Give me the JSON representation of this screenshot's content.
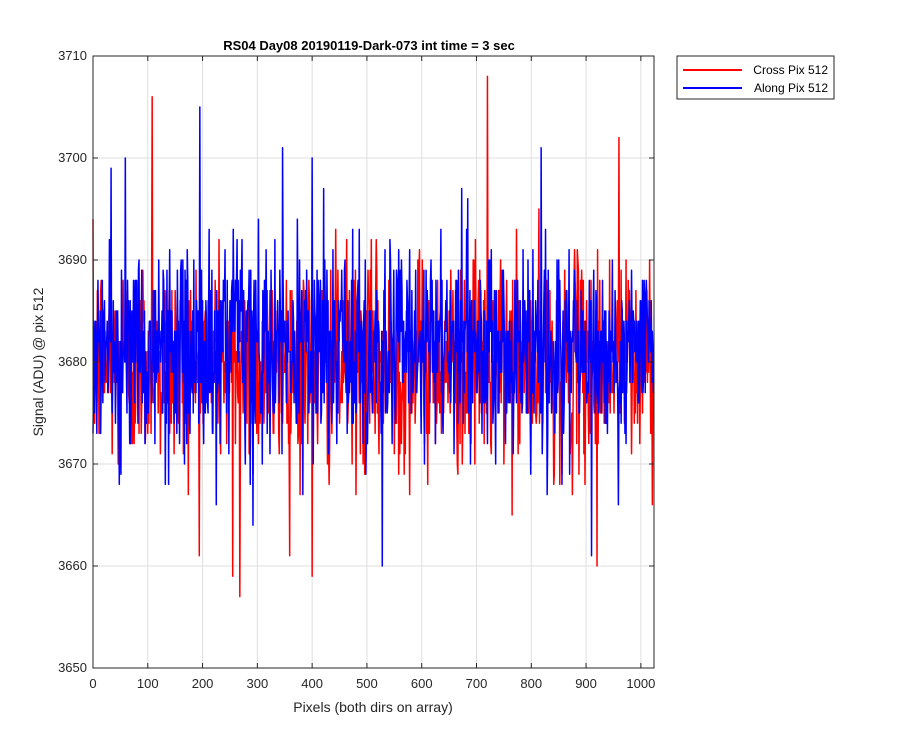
{
  "chart_data": {
    "type": "line",
    "title": "RS04 Day08 20190119-Dark-073 int time = 3 sec",
    "xlabel": "Pixels (both dirs on array)",
    "ylabel": "Signal (ADU) @ pix 512",
    "xlim": [
      0,
      1024
    ],
    "ylim": [
      3650,
      3710
    ],
    "xticks": [
      0,
      100,
      200,
      300,
      400,
      500,
      600,
      700,
      800,
      900,
      1000
    ],
    "yticks": [
      3650,
      3660,
      3670,
      3680,
      3690,
      3700,
      3710
    ],
    "grid": true,
    "legend_position": "outside-top-right",
    "series": [
      {
        "name": "Cross Pix 512",
        "color": "#ff0000",
        "x_range": [
          0,
          1023
        ],
        "mean": 3680,
        "range": [
          3657,
          3708
        ],
        "notable_points": [
          [
            108,
            3706
          ],
          [
            268,
            3657
          ],
          [
            255,
            3659
          ],
          [
            400,
            3659
          ],
          [
            720,
            3708
          ],
          [
            960,
            3702
          ],
          [
            920,
            3660
          ]
        ]
      },
      {
        "name": "Along Pix 512",
        "color": "#0000ff",
        "x_range": [
          0,
          1023
        ],
        "mean": 3681,
        "range": [
          3660,
          3705
        ],
        "notable_points": [
          [
            195,
            3705
          ],
          [
            59,
            3700
          ],
          [
            400,
            3700
          ],
          [
            818,
            3701
          ],
          [
            528,
            3660
          ],
          [
            910,
            3661
          ]
        ]
      }
    ]
  }
}
